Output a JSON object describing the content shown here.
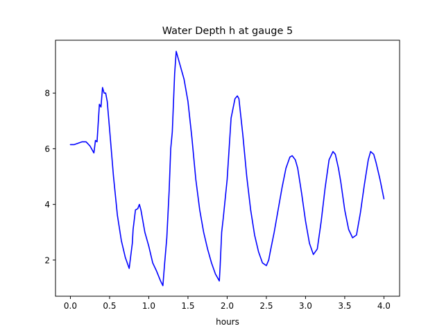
{
  "chart_data": {
    "type": "line",
    "title": "Water Depth h at gauge 5",
    "xlabel": "hours",
    "ylabel": "",
    "xlim": [
      -0.19,
      4.2
    ],
    "ylim": [
      0.7,
      9.9
    ],
    "xticks": [
      0.0,
      0.5,
      1.0,
      1.5,
      2.0,
      2.5,
      3.0,
      3.5,
      4.0
    ],
    "xtick_labels": [
      "0.0",
      "0.5",
      "1.0",
      "1.5",
      "2.0",
      "2.5",
      "3.0",
      "3.5",
      "4.0"
    ],
    "yticks": [
      2,
      4,
      6,
      8
    ],
    "ytick_labels": [
      "2",
      "4",
      "6",
      "8"
    ],
    "grid": false,
    "legend": "none",
    "series": [
      {
        "color": "#0000ff",
        "x": [
          0.0,
          0.05,
          0.1,
          0.15,
          0.2,
          0.25,
          0.3,
          0.32,
          0.34,
          0.37,
          0.39,
          0.41,
          0.43,
          0.45,
          0.47,
          0.5,
          0.55,
          0.6,
          0.65,
          0.7,
          0.75,
          0.79,
          0.8,
          0.83,
          0.86,
          0.88,
          0.9,
          0.95,
          1.0,
          1.05,
          1.1,
          1.15,
          1.18,
          1.2,
          1.23,
          1.26,
          1.28,
          1.3,
          1.33,
          1.35,
          1.37,
          1.4,
          1.45,
          1.5,
          1.55,
          1.6,
          1.65,
          1.7,
          1.75,
          1.8,
          1.85,
          1.9,
          1.91,
          1.93,
          1.95,
          2.0,
          2.05,
          2.1,
          2.13,
          2.15,
          2.2,
          2.25,
          2.3,
          2.35,
          2.4,
          2.45,
          2.5,
          2.53,
          2.55,
          2.6,
          2.65,
          2.7,
          2.75,
          2.8,
          2.83,
          2.87,
          2.9,
          2.95,
          3.0,
          3.05,
          3.1,
          3.15,
          3.2,
          3.25,
          3.3,
          3.35,
          3.38,
          3.42,
          3.45,
          3.5,
          3.55,
          3.6,
          3.65,
          3.7,
          3.75,
          3.8,
          3.83,
          3.87,
          3.9,
          3.95,
          4.0
        ],
        "y": [
          6.15,
          6.15,
          6.2,
          6.25,
          6.25,
          6.1,
          5.85,
          6.3,
          6.25,
          7.6,
          7.5,
          8.2,
          8.0,
          8.0,
          7.7,
          6.7,
          5.0,
          3.6,
          2.7,
          2.1,
          1.7,
          2.6,
          3.1,
          3.8,
          3.85,
          4.0,
          3.8,
          3.0,
          2.5,
          1.9,
          1.6,
          1.25,
          1.08,
          1.8,
          2.8,
          4.5,
          6.0,
          6.6,
          8.7,
          9.5,
          9.3,
          9.0,
          8.5,
          7.7,
          6.4,
          4.9,
          3.8,
          3.0,
          2.4,
          1.9,
          1.5,
          1.25,
          1.75,
          3.0,
          3.5,
          4.9,
          7.1,
          7.8,
          7.9,
          7.8,
          6.5,
          5.0,
          3.8,
          2.9,
          2.3,
          1.9,
          1.8,
          2.0,
          2.3,
          3.0,
          3.8,
          4.6,
          5.3,
          5.7,
          5.75,
          5.6,
          5.3,
          4.4,
          3.4,
          2.6,
          2.2,
          2.4,
          3.4,
          4.6,
          5.6,
          5.9,
          5.8,
          5.3,
          4.8,
          3.8,
          3.1,
          2.8,
          2.9,
          3.7,
          4.7,
          5.6,
          5.9,
          5.8,
          5.5,
          4.9,
          4.2
        ]
      }
    ]
  }
}
